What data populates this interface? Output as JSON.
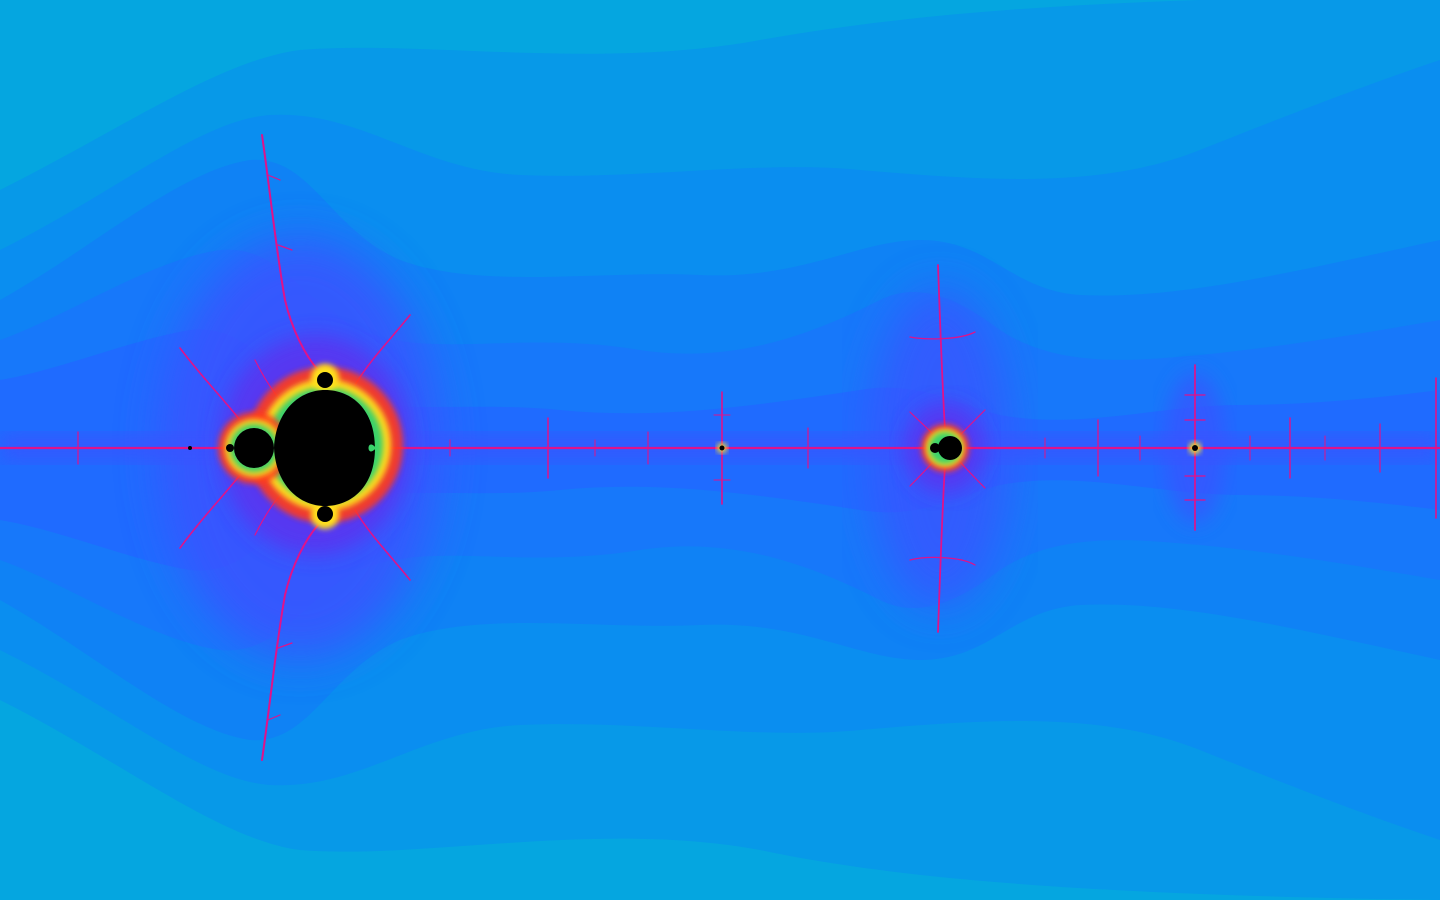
{
  "scene": {
    "subject": "mandelbrot-set-zoom",
    "palette": {
      "outer": "#05a6e0",
      "band_1": "#0799e8",
      "band_2": "#0a8ef0",
      "band_3": "#0f82f5",
      "band_4": "#1778fa",
      "band_5": "#1f6bff",
      "glow": "#3a52ff",
      "halo": "#5a36f0",
      "filament": "#e0128a",
      "edge_hot": "#ff3b1f",
      "edge_yellow": "#ffe21a",
      "edge_green": "#3ad26b",
      "interior": "#000000"
    }
  }
}
